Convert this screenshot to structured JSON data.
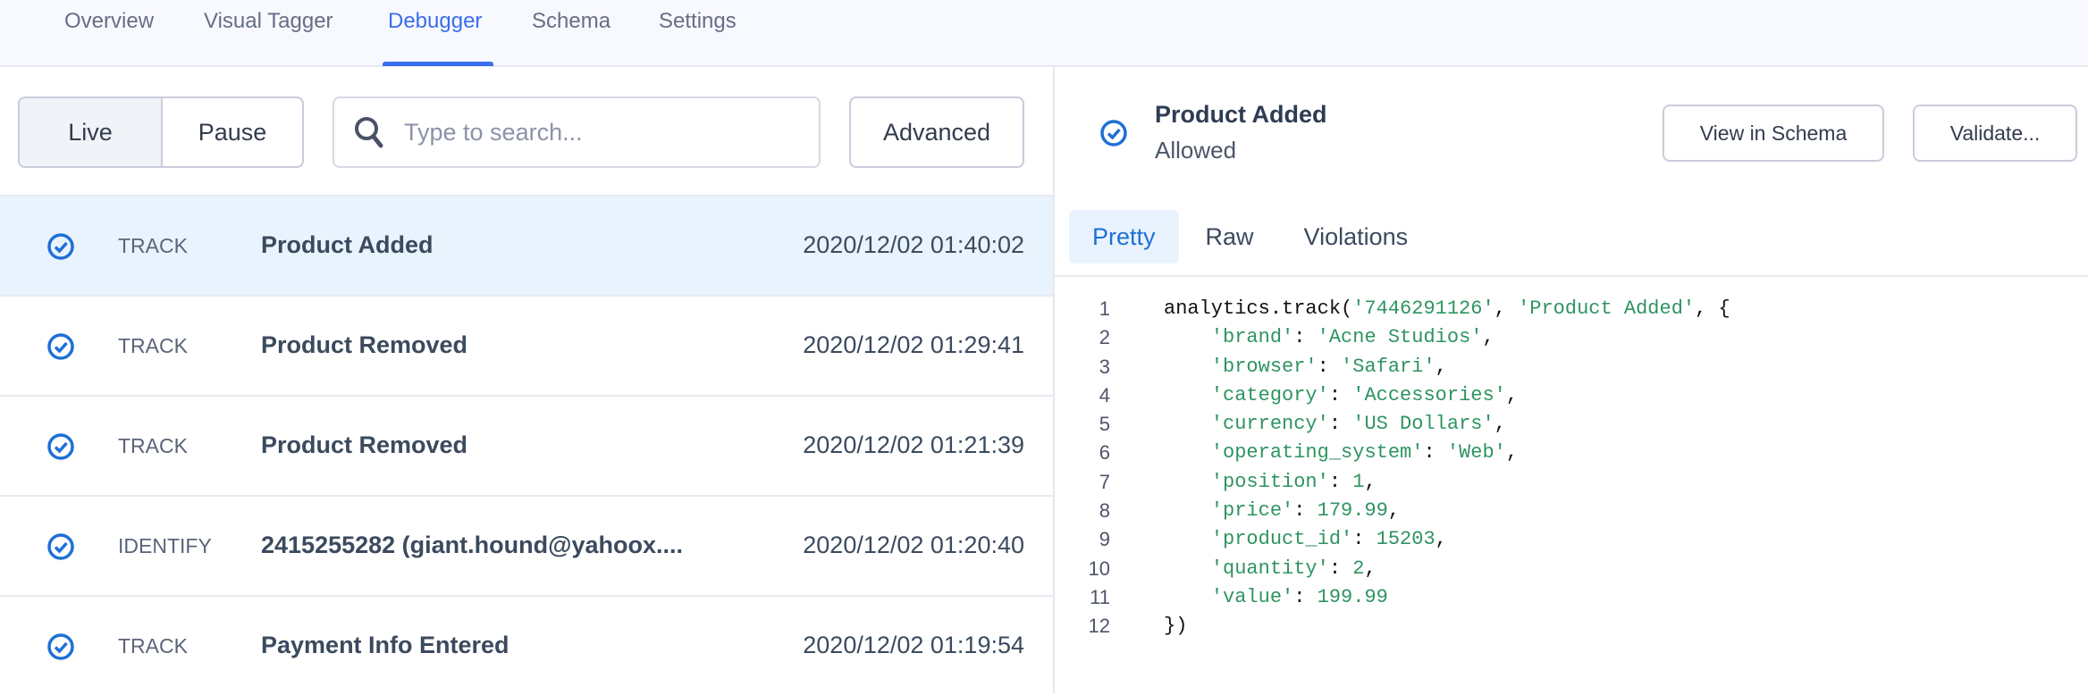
{
  "nav": {
    "tabs": [
      "Overview",
      "Visual Tagger",
      "Debugger",
      "Schema",
      "Settings"
    ],
    "active": "Debugger"
  },
  "controls": {
    "live": "Live",
    "pause": "Pause",
    "search_placeholder": "Type to search...",
    "advanced": "Advanced"
  },
  "events": [
    {
      "type": "TRACK",
      "name": "Product Added",
      "time": "2020/12/02 01:40:02",
      "selected": true
    },
    {
      "type": "TRACK",
      "name": "Product Removed",
      "time": "2020/12/02 01:29:41"
    },
    {
      "type": "TRACK",
      "name": "Product Removed",
      "time": "2020/12/02 01:21:39"
    },
    {
      "type": "IDENTIFY",
      "name": "2415255282 (giant.hound@yahoox....",
      "time": "2020/12/02 01:20:40"
    },
    {
      "type": "TRACK",
      "name": "Payment Info Entered",
      "time": "2020/12/02 01:19:54"
    }
  ],
  "detail": {
    "title": "Product Added",
    "status": "Allowed",
    "view_schema": "View in Schema",
    "validate": "Validate...",
    "tabs": [
      "Pretty",
      "Raw",
      "Violations"
    ],
    "active_tab": "Pretty",
    "code": [
      [
        [
          "analytics.track(",
          ""
        ],
        [
          "'7446291126'",
          "s"
        ],
        [
          ", ",
          ""
        ],
        [
          "'Product Added'",
          "s"
        ],
        [
          ", {",
          ""
        ]
      ],
      [
        [
          "    ",
          ""
        ],
        [
          "'brand'",
          "s"
        ],
        [
          ": ",
          ""
        ],
        [
          "'Acne Studios'",
          "s"
        ],
        [
          ",",
          ""
        ]
      ],
      [
        [
          "    ",
          ""
        ],
        [
          "'browser'",
          "s"
        ],
        [
          ": ",
          ""
        ],
        [
          "'Safari'",
          "s"
        ],
        [
          ",",
          ""
        ]
      ],
      [
        [
          "    ",
          ""
        ],
        [
          "'category'",
          "s"
        ],
        [
          ": ",
          ""
        ],
        [
          "'Accessories'",
          "s"
        ],
        [
          ",",
          ""
        ]
      ],
      [
        [
          "    ",
          ""
        ],
        [
          "'currency'",
          "s"
        ],
        [
          ": ",
          ""
        ],
        [
          "'US Dollars'",
          "s"
        ],
        [
          ",",
          ""
        ]
      ],
      [
        [
          "    ",
          ""
        ],
        [
          "'operating_system'",
          "s"
        ],
        [
          ": ",
          ""
        ],
        [
          "'Web'",
          "s"
        ],
        [
          ",",
          ""
        ]
      ],
      [
        [
          "    ",
          ""
        ],
        [
          "'position'",
          "s"
        ],
        [
          ": ",
          ""
        ],
        [
          "1",
          "s"
        ],
        [
          ",",
          ""
        ]
      ],
      [
        [
          "    ",
          ""
        ],
        [
          "'price'",
          "s"
        ],
        [
          ": ",
          ""
        ],
        [
          "179.99",
          "s"
        ],
        [
          ",",
          ""
        ]
      ],
      [
        [
          "    ",
          ""
        ],
        [
          "'product_id'",
          "s"
        ],
        [
          ": ",
          ""
        ],
        [
          "15203",
          "s"
        ],
        [
          ",",
          ""
        ]
      ],
      [
        [
          "    ",
          ""
        ],
        [
          "'quantity'",
          "s"
        ],
        [
          ": ",
          ""
        ],
        [
          "2",
          "s"
        ],
        [
          ",",
          ""
        ]
      ],
      [
        [
          "    ",
          ""
        ],
        [
          "'value'",
          "s"
        ],
        [
          ": ",
          ""
        ],
        [
          "199.99",
          "s"
        ]
      ],
      [
        [
          "})",
          ""
        ]
      ]
    ]
  },
  "colors": {
    "accent": "#3a6df0",
    "check": "#1f6fd6",
    "selected_row": "#e8f3fe",
    "string": "#2e9461"
  }
}
